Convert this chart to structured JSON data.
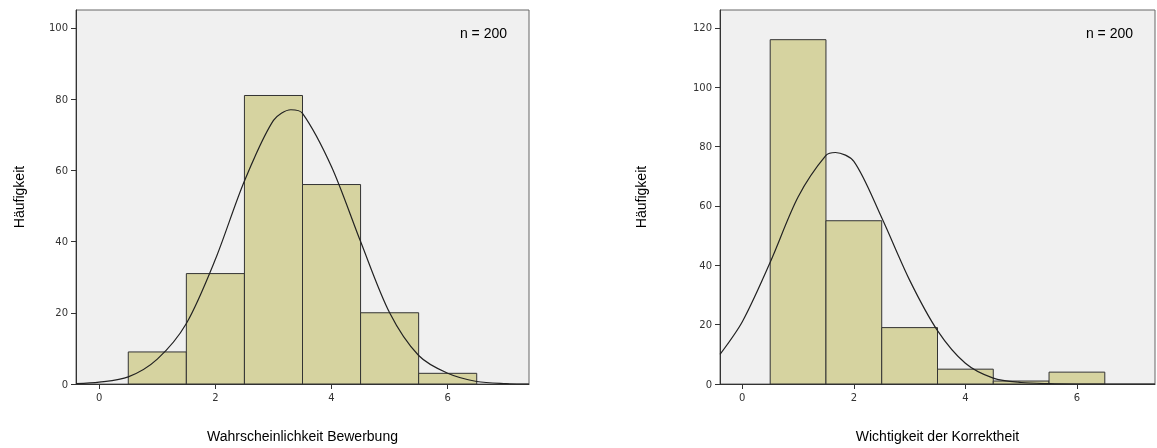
{
  "chart_data": [
    {
      "type": "histogram",
      "xlabel": "Wahrscheinlichkeit Bewerbung",
      "ylabel": "Häufigkeit",
      "annotations": [
        "n = 200"
      ],
      "bins": [
        0.5,
        1.5,
        2.5,
        3.5,
        4.5,
        5.5,
        6.5
      ],
      "values": [
        9,
        31,
        81,
        56,
        20,
        3
      ],
      "color": "#d6d3a0",
      "xlim": [
        -0.4,
        7.4
      ],
      "ylim": [
        0,
        105
      ],
      "xticks": [
        0,
        2,
        4,
        6
      ],
      "yticks": [
        0,
        20,
        40,
        60,
        80,
        100
      ],
      "grid": false,
      "series": [
        {
          "type": "line",
          "color": "#222222",
          "x": [
            -0.4,
            0,
            0.5,
            1,
            1.5,
            2,
            2.5,
            3,
            3.3,
            3.5,
            4,
            4.5,
            5,
            5.5,
            6,
            6.5,
            7,
            7.4
          ],
          "values": [
            0.1,
            0.5,
            2,
            7,
            17,
            35,
            57,
            74,
            77,
            76,
            61,
            40,
            20,
            8,
            3,
            0.7,
            0.1,
            0
          ]
        }
      ]
    },
    {
      "type": "histogram",
      "xlabel": "Wichtigkeit der Korrektheit",
      "ylabel": "Häufigkeit",
      "annotations": [
        "n = 200"
      ],
      "bins": [
        0.5,
        1.5,
        2.5,
        3.5,
        4.5,
        5.5,
        6.5
      ],
      "values": [
        116,
        55,
        19,
        5,
        1,
        4
      ],
      "color": "#d6d3a0",
      "xlim": [
        -0.4,
        7.4
      ],
      "ylim": [
        0,
        126
      ],
      "xticks": [
        0,
        2,
        4,
        6
      ],
      "yticks": [
        0,
        20,
        40,
        60,
        80,
        100,
        120
      ],
      "grid": false,
      "series": [
        {
          "type": "line",
          "color": "#222222",
          "x": [
            -0.4,
            0,
            0.5,
            1,
            1.5,
            1.67,
            2,
            2.5,
            3,
            3.5,
            4,
            4.5,
            5,
            5.5,
            6,
            6.5,
            7,
            7.4
          ],
          "values": [
            10,
            21,
            41,
            63,
            77,
            78,
            75,
            56,
            35,
            18,
            7,
            2,
            0.5,
            0.1,
            0,
            0,
            0,
            0
          ]
        }
      ]
    }
  ]
}
